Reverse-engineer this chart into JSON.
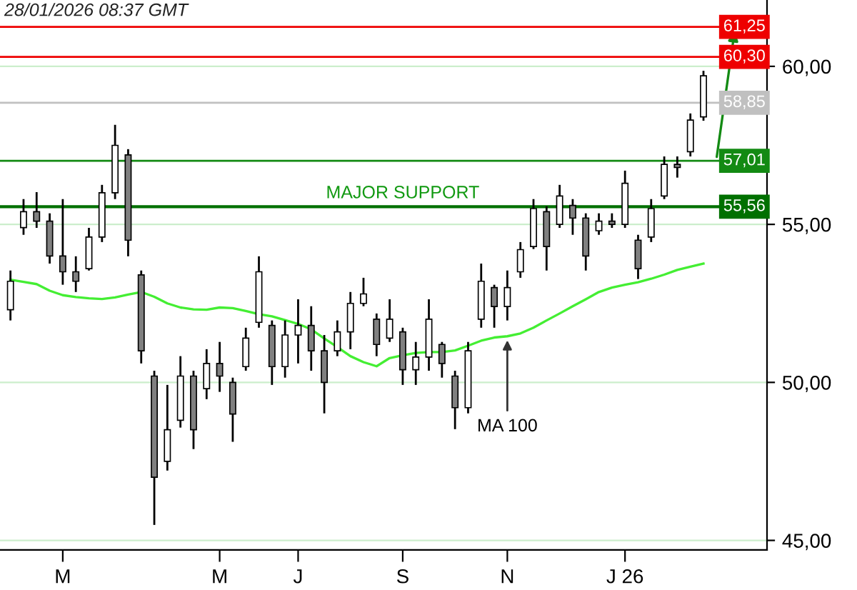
{
  "chart_data": {
    "type": "candlestick",
    "categories": [
      null,
      null,
      null,
      null,
      "M",
      null,
      null,
      null,
      null,
      null,
      null,
      null,
      null,
      null,
      null,
      null,
      "M",
      null,
      null,
      null,
      null,
      null,
      "J",
      null,
      null,
      null,
      null,
      null,
      null,
      null,
      "S",
      null,
      null,
      null,
      null,
      null,
      null,
      null,
      "N",
      null,
      null,
      null,
      null,
      null,
      null,
      null,
      null,
      "J 26",
      null,
      null,
      null,
      null,
      null,
      null
    ],
    "ohlc": [
      [
        52.3,
        53.54,
        51.96,
        53.2
      ],
      [
        54.9,
        55.8,
        54.67,
        55.4
      ],
      [
        55.4,
        56.02,
        54.89,
        55.1
      ],
      [
        55.1,
        55.35,
        53.76,
        54.0
      ],
      [
        54.0,
        55.8,
        53.09,
        53.5
      ],
      [
        53.5,
        53.99,
        52.86,
        53.2
      ],
      [
        53.6,
        54.89,
        53.54,
        54.6
      ],
      [
        54.6,
        56.25,
        54.44,
        56.0
      ],
      [
        56.0,
        58.15,
        55.8,
        57.5
      ],
      [
        57.2,
        57.38,
        53.99,
        54.5
      ],
      [
        53.4,
        53.54,
        50.6,
        51.0
      ],
      [
        50.2,
        50.37,
        45.49,
        47.0
      ],
      [
        47.5,
        49.92,
        47.21,
        48.5
      ],
      [
        48.8,
        50.83,
        48.57,
        50.2
      ],
      [
        50.2,
        50.37,
        47.89,
        48.5
      ],
      [
        49.8,
        51.05,
        49.47,
        50.6
      ],
      [
        50.6,
        51.28,
        49.7,
        50.2
      ],
      [
        50.0,
        50.15,
        48.12,
        49.0
      ],
      [
        50.5,
        51.73,
        50.37,
        51.4
      ],
      [
        51.9,
        53.99,
        51.73,
        53.5
      ],
      [
        51.8,
        51.96,
        49.92,
        50.5
      ],
      [
        50.5,
        51.96,
        50.15,
        51.5
      ],
      [
        51.5,
        52.63,
        50.6,
        51.8
      ],
      [
        51.8,
        52.41,
        50.37,
        51.0
      ],
      [
        51.0,
        51.5,
        49.02,
        50.0
      ],
      [
        51.0,
        51.96,
        50.83,
        51.6
      ],
      [
        51.6,
        52.86,
        51.05,
        52.5
      ],
      [
        52.5,
        53.31,
        52.41,
        52.8
      ],
      [
        52.0,
        52.18,
        50.83,
        51.2
      ],
      [
        51.4,
        52.63,
        51.28,
        52.0
      ],
      [
        51.6,
        51.73,
        49.92,
        50.4
      ],
      [
        50.4,
        51.28,
        49.92,
        50.8
      ],
      [
        50.8,
        52.63,
        50.37,
        52.0
      ],
      [
        51.2,
        51.28,
        50.15,
        50.6
      ],
      [
        50.2,
        50.37,
        48.52,
        49.2
      ],
      [
        49.2,
        51.28,
        49.02,
        51.0
      ],
      [
        52.0,
        53.76,
        51.73,
        53.2
      ],
      [
        53.0,
        53.09,
        51.73,
        52.4
      ],
      [
        52.4,
        53.54,
        51.96,
        53.0
      ],
      [
        53.5,
        54.44,
        53.31,
        54.2
      ],
      [
        54.3,
        55.8,
        54.22,
        55.5
      ],
      [
        55.4,
        55.57,
        53.54,
        54.3
      ],
      [
        55.0,
        56.25,
        54.89,
        55.9
      ],
      [
        55.6,
        55.8,
        54.67,
        55.2
      ],
      [
        55.2,
        55.35,
        53.54,
        54.0
      ],
      [
        54.8,
        55.35,
        54.67,
        55.1
      ],
      [
        55.1,
        55.35,
        54.89,
        55.0
      ],
      [
        55.0,
        56.7,
        54.89,
        56.3
      ],
      [
        54.5,
        54.67,
        53.27,
        53.6
      ],
      [
        54.6,
        55.8,
        54.44,
        55.5
      ],
      [
        55.9,
        57.15,
        55.8,
        56.9
      ],
      [
        56.9,
        57.15,
        56.48,
        56.8
      ],
      [
        57.3,
        58.51,
        57.15,
        58.3
      ],
      [
        58.4,
        59.86,
        58.28,
        59.7
      ]
    ],
    "series": [
      {
        "type": "line",
        "color": "#44ee33",
        "values": [
          53.25,
          53.18,
          53.11,
          52.9,
          52.76,
          52.7,
          52.66,
          52.64,
          52.69,
          52.78,
          52.86,
          52.71,
          52.5,
          52.37,
          52.31,
          52.3,
          52.37,
          52.35,
          52.26,
          52.16,
          52.09,
          51.97,
          51.85,
          51.68,
          51.39,
          51.12,
          50.83,
          50.64,
          50.51,
          50.77,
          50.86,
          50.93,
          50.96,
          50.96,
          51.01,
          51.16,
          51.32,
          51.42,
          51.46,
          51.55,
          51.73,
          51.96,
          52.18,
          52.41,
          52.63,
          52.86,
          53.0,
          53.09,
          53.17,
          53.28,
          53.41,
          53.56,
          53.66,
          53.76
        ]
      }
    ],
    "ylim": [
      44.7,
      62.1
    ],
    "yticks": [
      {
        "value": 45,
        "label": "45,00"
      },
      {
        "value": 50,
        "label": "50,00"
      },
      {
        "value": 55,
        "label": "55,00"
      },
      {
        "value": 60,
        "label": "60,00"
      }
    ],
    "grid": "y",
    "ref_lines": [
      {
        "axis": "y",
        "value": 61.25,
        "label": "61,25",
        "color": "#ee0000"
      },
      {
        "axis": "y",
        "value": 60.3,
        "label": "60,30",
        "color": "#ee0000"
      },
      {
        "axis": "y",
        "value": 58.85,
        "label": "58,85",
        "color": "#c0c0c0"
      },
      {
        "axis": "y",
        "value": 57.01,
        "label": "57,01",
        "color": "#138a13"
      },
      {
        "axis": "y",
        "value": 55.56,
        "label": "55,56",
        "color": "#007000"
      }
    ],
    "annotations": [
      "28/01/2026 08:37 GMT",
      {
        "text": "MAJOR SUPPORT",
        "x": "S",
        "y": 55.56
      },
      {
        "text": "MA 100",
        "x": "N",
        "y": 51.46
      }
    ]
  }
}
